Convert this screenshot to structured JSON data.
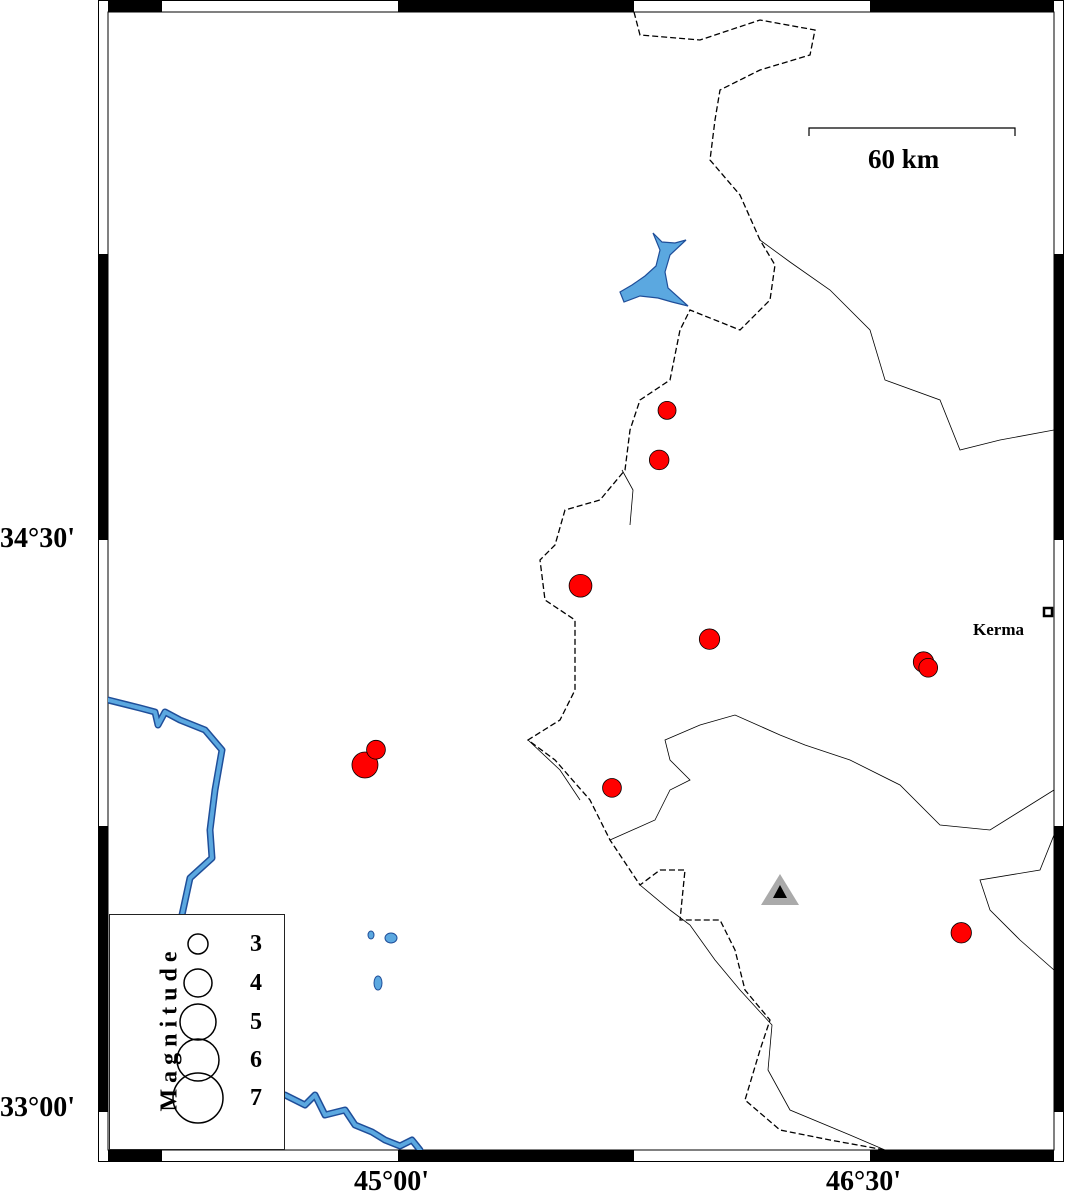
{
  "map": {
    "lon_range": [
      44.08,
      47.08
    ],
    "lat_range": [
      32.9,
      35.88
    ],
    "x_ticks": [
      "45°00'",
      "46°30'"
    ],
    "y_ticks": [
      "34°30'",
      "33°00'"
    ],
    "scale_bar": {
      "label": "60 km"
    },
    "city": {
      "name": "Kerma",
      "lon": 47.05,
      "lat": 34.31
    },
    "station": {
      "lon": 46.21,
      "lat": 33.45,
      "symbol": "triangle"
    },
    "colors": {
      "event": "#ff0000",
      "water": "#5ba8e0",
      "river_outline": "#1f4e99",
      "station_halo": "#aaaaaa"
    }
  },
  "events": [
    {
      "lon": 45.855,
      "lat": 34.84,
      "mag": 3.0
    },
    {
      "lon": 45.83,
      "lat": 34.71,
      "mag": 3.2
    },
    {
      "lon": 45.58,
      "lat": 34.38,
      "mag": 3.6
    },
    {
      "lon": 45.99,
      "lat": 34.24,
      "mag": 3.3
    },
    {
      "lon": 46.67,
      "lat": 34.18,
      "mag": 3.3
    },
    {
      "lon": 46.685,
      "lat": 34.165,
      "mag": 3.1
    },
    {
      "lon": 44.93,
      "lat": 33.95,
      "mag": 3.1
    },
    {
      "lon": 44.895,
      "lat": 33.91,
      "mag": 4.0
    },
    {
      "lon": 45.68,
      "lat": 33.85,
      "mag": 3.1
    },
    {
      "lon": 46.79,
      "lat": 33.47,
      "mag": 3.3
    }
  ],
  "legend": {
    "title": "Magnitude",
    "items": [
      "3",
      "4",
      "5",
      "6",
      "7"
    ]
  }
}
